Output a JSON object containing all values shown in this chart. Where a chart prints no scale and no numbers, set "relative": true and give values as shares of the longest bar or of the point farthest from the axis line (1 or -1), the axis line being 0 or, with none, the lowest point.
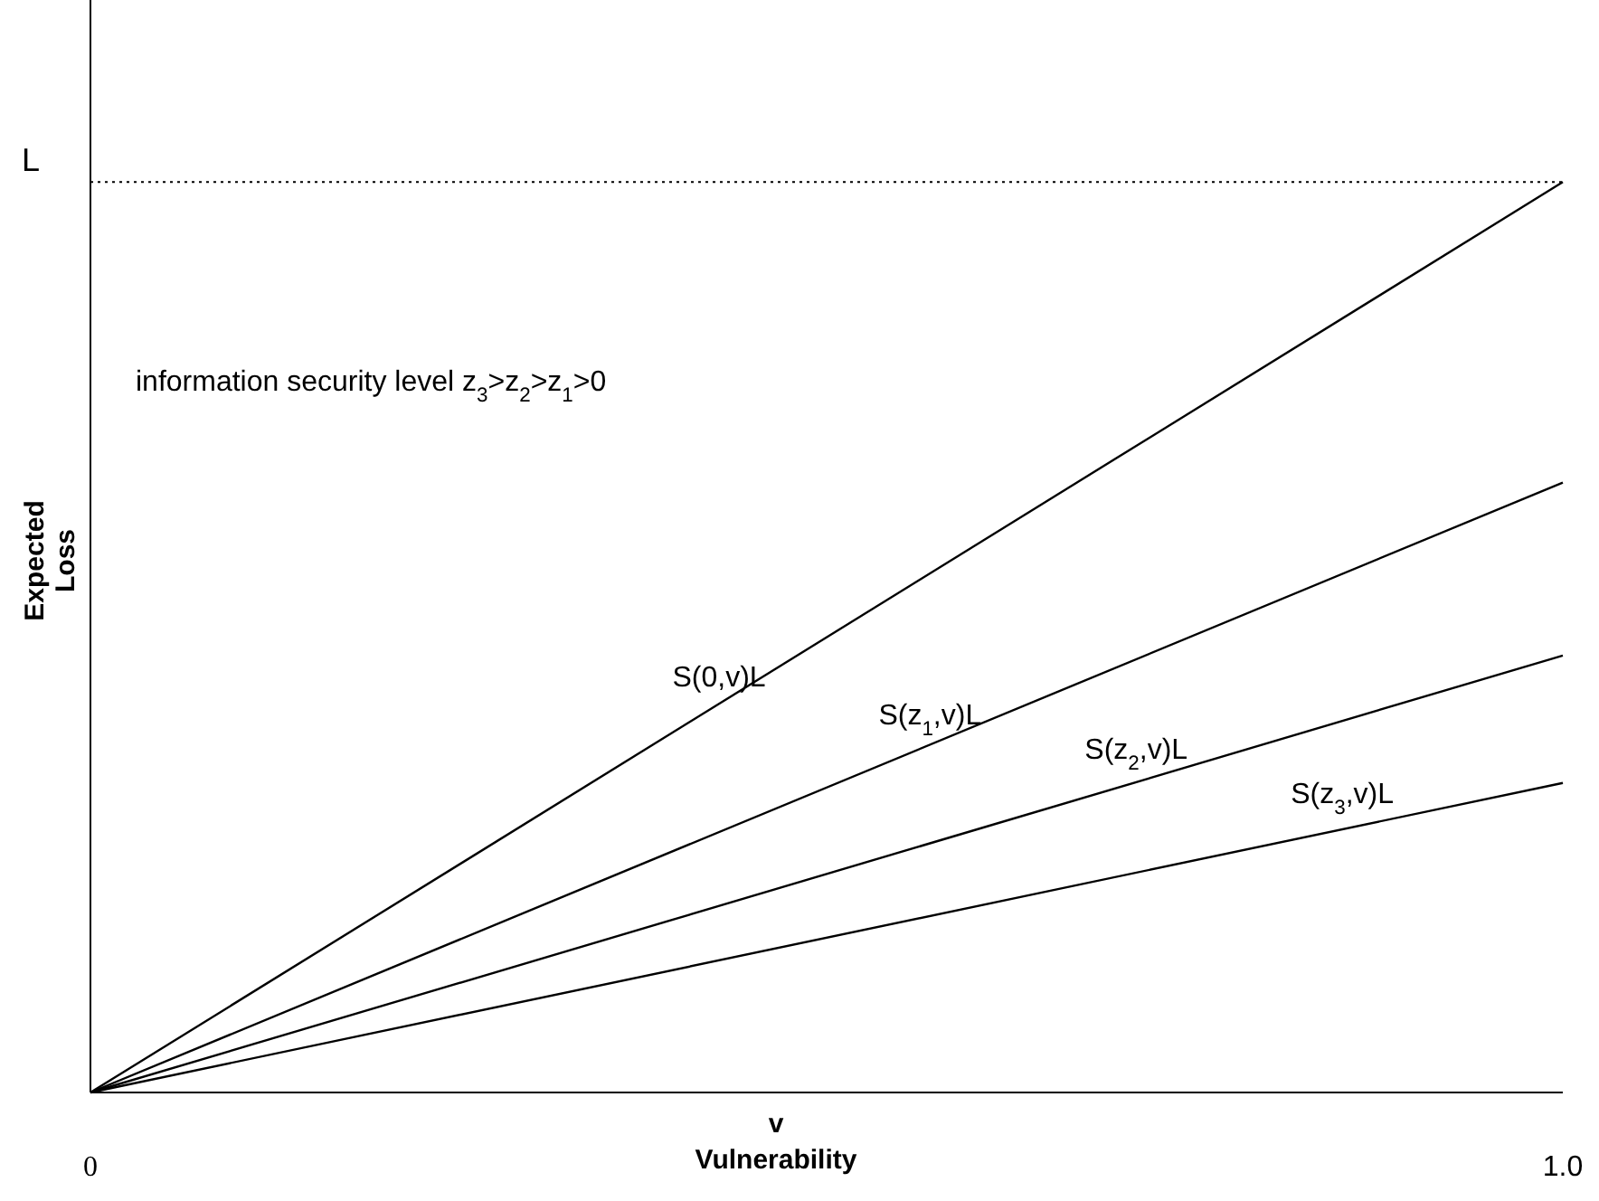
{
  "chart_data": {
    "type": "line",
    "relative": true,
    "xlabel": "v\nVulnerability",
    "ylabel": "Expected\nLoss",
    "xlim": [
      0,
      1
    ],
    "xticks": [
      0,
      {
        "value": 1,
        "label": "1.0"
      }
    ],
    "x": [
      0,
      1
    ],
    "series": [
      {
        "name": "S(0,v)L",
        "color": "#000000",
        "values": [
          0,
          1
        ]
      },
      {
        "name": "S(z$_{1}$,v)L",
        "color": "#000000",
        "values": [
          0,
          0.67
        ]
      },
      {
        "name": "S(z$_{2}$,v)L",
        "color": "#000000",
        "values": [
          0,
          0.48
        ]
      },
      {
        "name": "S(z$_{3}$,v)L",
        "color": "#000000",
        "values": [
          0,
          0.34
        ]
      }
    ],
    "ref_lines": [
      {
        "axis": "y",
        "value": 1,
        "label": "L",
        "line_style": "dotted"
      }
    ],
    "annotations": [
      "information security level z$_{3}$>z$_{2}$>z$_{1}$>0"
    ],
    "grid": false,
    "legend": false,
    "marker": "none",
    "line_style": "solid"
  }
}
